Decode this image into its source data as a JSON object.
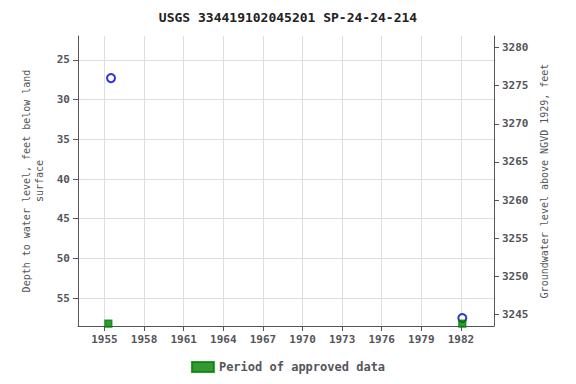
{
  "chart_data": {
    "type": "scatter",
    "title": "USGS 334419102045201 SP-24-24-214",
    "ylabel": "Depth to water level, feet below land\nsurface",
    "y2label": "Groundwater level above NGVD 1929, feet",
    "xlim": [
      1953.0,
      1984.5
    ],
    "xticks": [
      1955,
      1958,
      1961,
      1964,
      1967,
      1970,
      1973,
      1976,
      1979,
      1982
    ],
    "ylim": [
      58.5,
      22.0
    ],
    "yticks": [
      25,
      30,
      35,
      40,
      45,
      50,
      55
    ],
    "y2lim": [
      3243.5,
      3281.5
    ],
    "y2ticks": [
      3245,
      3250,
      3255,
      3260,
      3265,
      3270,
      3275,
      3280
    ],
    "grid": true,
    "legend": "bottom",
    "series": [
      {
        "color": "#0000cc",
        "marker": "open_circle",
        "x": [
          1955.5,
          1982.1
        ],
        "values": [
          27.3,
          57.5
        ]
      },
      {
        "name": "Period of approved data",
        "color": "#008000",
        "marker": "square",
        "x": [
          1955.3,
          1982.1
        ],
        "values": [
          58.2,
          58.2
        ]
      }
    ]
  }
}
